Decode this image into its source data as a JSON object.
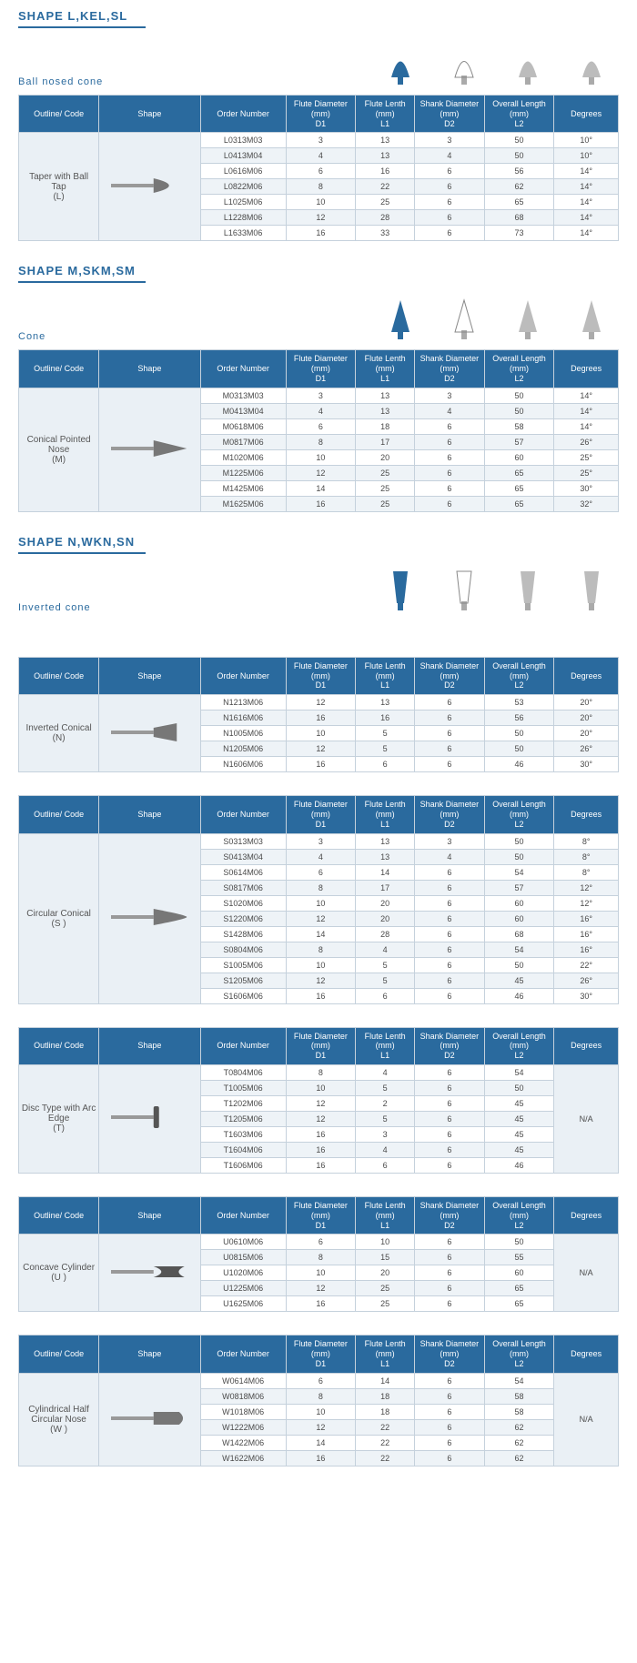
{
  "headers": {
    "outline": "Outline/ Code",
    "shape": "Shape",
    "order": "Order Number",
    "d1": "Flute Diameter (mm) D1",
    "l1": "Flute Lenth (mm) L1",
    "d2": "Shank Diameter (mm) D2",
    "l2": "Overall Length (mm) L2",
    "deg": "Degrees"
  },
  "colors": {
    "primary": "#2a6a9e",
    "row_alt": "#eef3f7",
    "row": "#ffffff",
    "side": "#eaf0f5"
  },
  "sections": [
    {
      "title": "SHAPE L,KEL,SL",
      "desc": "Ball   nosed cone",
      "code": "Taper with Ball Tap (L)",
      "shape_svg": "taper-ball",
      "rows": [
        {
          "order": "L0313M03",
          "d1": "3",
          "l1": "13",
          "d2": "3",
          "l2": "50",
          "deg": "10°"
        },
        {
          "order": "L0413M04",
          "d1": "4",
          "l1": "13",
          "d2": "4",
          "l2": "50",
          "deg": "10°"
        },
        {
          "order": "L0616M06",
          "d1": "6",
          "l1": "16",
          "d2": "6",
          "l2": "56",
          "deg": "14°"
        },
        {
          "order": "L0822M06",
          "d1": "8",
          "l1": "22",
          "d2": "6",
          "l2": "62",
          "deg": "14°"
        },
        {
          "order": "L1025M06",
          "d1": "10",
          "l1": "25",
          "d2": "6",
          "l2": "65",
          "deg": "14°"
        },
        {
          "order": "L1228M06",
          "d1": "12",
          "l1": "28",
          "d2": "6",
          "l2": "68",
          "deg": "14°"
        },
        {
          "order": "L1633M06",
          "d1": "16",
          "l1": "33",
          "d2": "6",
          "l2": "73",
          "deg": "14°"
        }
      ],
      "deg_merged": false
    },
    {
      "title": "SHAPE M,SKM,SM",
      "desc": "Cone",
      "code": "Conical Pointed Nose(M)",
      "shape_svg": "cone-point",
      "rows": [
        {
          "order": "M0313M03",
          "d1": "3",
          "l1": "13",
          "d2": "3",
          "l2": "50",
          "deg": "14°"
        },
        {
          "order": "M0413M04",
          "d1": "4",
          "l1": "13",
          "d2": "4",
          "l2": "50",
          "deg": "14°"
        },
        {
          "order": "M0618M06",
          "d1": "6",
          "l1": "18",
          "d2": "6",
          "l2": "58",
          "deg": "14°"
        },
        {
          "order": "M0817M06",
          "d1": "8",
          "l1": "17",
          "d2": "6",
          "l2": "57",
          "deg": "26°"
        },
        {
          "order": "M1020M06",
          "d1": "10",
          "l1": "20",
          "d2": "6",
          "l2": "60",
          "deg": "25°"
        },
        {
          "order": "M1225M06",
          "d1": "12",
          "l1": "25",
          "d2": "6",
          "l2": "65",
          "deg": "25°"
        },
        {
          "order": "M1425M06",
          "d1": "14",
          "l1": "25",
          "d2": "6",
          "l2": "65",
          "deg": "30°"
        },
        {
          "order": "M1625M06",
          "d1": "16",
          "l1": "25",
          "d2": "6",
          "l2": "65",
          "deg": "32°"
        }
      ],
      "deg_merged": false
    },
    {
      "title": "SHAPE N,WKN,SN",
      "desc": "Inverted cone",
      "code": "Inverted Conical (N)",
      "shape_svg": "inverted",
      "rows": [
        {
          "order": "N1213M06",
          "d1": "12",
          "l1": "13",
          "d2": "6",
          "l2": "53",
          "deg": "20°"
        },
        {
          "order": "N1616M06",
          "d1": "16",
          "l1": "16",
          "d2": "6",
          "l2": "56",
          "deg": "20°"
        },
        {
          "order": "N1005M06",
          "d1": "10",
          "l1": "5",
          "d2": "6",
          "l2": "50",
          "deg": "20°"
        },
        {
          "order": "N1205M06",
          "d1": "12",
          "l1": "5",
          "d2": "6",
          "l2": "50",
          "deg": "26°"
        },
        {
          "order": "N1606M06",
          "d1": "16",
          "l1": "6",
          "d2": "6",
          "l2": "46",
          "deg": "30°"
        }
      ],
      "deg_merged": false,
      "extra_gap": true
    },
    {
      "title": "",
      "desc": "",
      "code": "Circular Conical (S )",
      "shape_svg": "circ-cone",
      "rows": [
        {
          "order": "S0313M03",
          "d1": "3",
          "l1": "13",
          "d2": "3",
          "l2": "50",
          "deg": "8°"
        },
        {
          "order": "S0413M04",
          "d1": "4",
          "l1": "13",
          "d2": "4",
          "l2": "50",
          "deg": "8°"
        },
        {
          "order": "S0614M06",
          "d1": "6",
          "l1": "14",
          "d2": "6",
          "l2": "54",
          "deg": "8°"
        },
        {
          "order": "S0817M06",
          "d1": "8",
          "l1": "17",
          "d2": "6",
          "l2": "57",
          "deg": "12°"
        },
        {
          "order": "S1020M06",
          "d1": "10",
          "l1": "20",
          "d2": "6",
          "l2": "60",
          "deg": "12°"
        },
        {
          "order": "S1220M06",
          "d1": "12",
          "l1": "20",
          "d2": "6",
          "l2": "60",
          "deg": "16°"
        },
        {
          "order": "S1428M06",
          "d1": "14",
          "l1": "28",
          "d2": "6",
          "l2": "68",
          "deg": "16°"
        },
        {
          "order": "S0804M06",
          "d1": "8",
          "l1": "4",
          "d2": "6",
          "l2": "54",
          "deg": "16°"
        },
        {
          "order": "S1005M06",
          "d1": "10",
          "l1": "5",
          "d2": "6",
          "l2": "50",
          "deg": "22°"
        },
        {
          "order": "S1205M06",
          "d1": "12",
          "l1": "5",
          "d2": "6",
          "l2": "45",
          "deg": "26°"
        },
        {
          "order": "S1606M06",
          "d1": "16",
          "l1": "6",
          "d2": "6",
          "l2": "46",
          "deg": "30°"
        }
      ],
      "deg_merged": false
    },
    {
      "title": "",
      "desc": "",
      "code": "Disc Type with Arc Edge (T)",
      "shape_svg": "disc",
      "rows": [
        {
          "order": "T0804M06",
          "d1": "8",
          "l1": "4",
          "d2": "6",
          "l2": "54"
        },
        {
          "order": "T1005M06",
          "d1": "10",
          "l1": "5",
          "d2": "6",
          "l2": "50"
        },
        {
          "order": "T1202M06",
          "d1": "12",
          "l1": "2",
          "d2": "6",
          "l2": "45"
        },
        {
          "order": "T1205M06",
          "d1": "12",
          "l1": "5",
          "d2": "6",
          "l2": "45"
        },
        {
          "order": "T1603M06",
          "d1": "16",
          "l1": "3",
          "d2": "6",
          "l2": "45"
        },
        {
          "order": "T1604M06",
          "d1": "16",
          "l1": "4",
          "d2": "6",
          "l2": "45"
        },
        {
          "order": "T1606M06",
          "d1": "16",
          "l1": "6",
          "d2": "6",
          "l2": "46"
        }
      ],
      "deg_merged": true,
      "deg_value": "N/A"
    },
    {
      "title": "",
      "desc": "",
      "code": "Concave Cylinder (U )",
      "shape_svg": "concave",
      "rows": [
        {
          "order": "U0610M06",
          "d1": "6",
          "l1": "10",
          "d2": "6",
          "l2": "50"
        },
        {
          "order": "U0815M06",
          "d1": "8",
          "l1": "15",
          "d2": "6",
          "l2": "55"
        },
        {
          "order": "U1020M06",
          "d1": "10",
          "l1": "20",
          "d2": "6",
          "l2": "60"
        },
        {
          "order": "U1225M06",
          "d1": "12",
          "l1": "25",
          "d2": "6",
          "l2": "65"
        },
        {
          "order": "U1625M06",
          "d1": "16",
          "l1": "25",
          "d2": "6",
          "l2": "65"
        }
      ],
      "deg_merged": true,
      "deg_value": "N/A"
    },
    {
      "title": "",
      "desc": "",
      "code": "Cylindrical Half Circular Nose (W )",
      "shape_svg": "cyl-half",
      "rows": [
        {
          "order": "W0614M06",
          "d1": "6",
          "l1": "14",
          "d2": "6",
          "l2": "54"
        },
        {
          "order": "W0818M06",
          "d1": "8",
          "l1": "18",
          "d2": "6",
          "l2": "58"
        },
        {
          "order": "W1018M06",
          "d1": "10",
          "l1": "18",
          "d2": "6",
          "l2": "58"
        },
        {
          "order": "W1222M06",
          "d1": "12",
          "l1": "22",
          "d2": "6",
          "l2": "62"
        },
        {
          "order": "W1422M06",
          "d1": "14",
          "l1": "22",
          "d2": "6",
          "l2": "62"
        },
        {
          "order": "W1622M06",
          "d1": "16",
          "l1": "22",
          "d2": "6",
          "l2": "62"
        }
      ],
      "deg_merged": true,
      "deg_value": "N/A"
    }
  ]
}
